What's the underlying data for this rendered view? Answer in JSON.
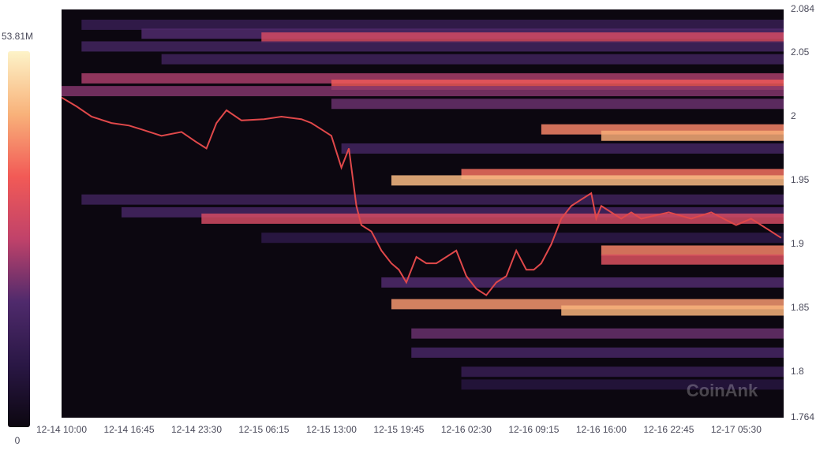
{
  "chart_data": {
    "type": "liquidation-heatmap",
    "watermark": "CoinAnk",
    "xlim": [
      "12-14 10:00",
      "12-17 10:15"
    ],
    "xticks": [
      "12-14 10:00",
      "12-14 16:45",
      "12-14 23:30",
      "12-15 06:15",
      "12-15 13:00",
      "12-15 19:45",
      "12-16 02:30",
      "12-16 09:15",
      "12-16 16:00",
      "12-16 22:45",
      "12-17 05:30"
    ],
    "ylim": [
      1.764,
      2.084
    ],
    "yticks": [
      1.764,
      1.8,
      1.85,
      1.9,
      1.95,
      2,
      2.05,
      2.084
    ],
    "colorbar": {
      "lim": [
        0,
        53810000
      ],
      "ticks": [
        {
          "value": 0,
          "label": "0"
        },
        {
          "value": 53810000,
          "label": "53.81M"
        }
      ]
    },
    "background": "#0c0710",
    "colormap": [
      "#0c0710",
      "#2a1745",
      "#4f2a6c",
      "#c0426a",
      "#f25a56",
      "#f8b27a",
      "#fdf3c8"
    ],
    "levels": {
      "price": [
        2.072,
        2.065,
        2.062,
        2.055,
        2.045,
        2.03,
        2.025,
        2.02,
        2.01,
        1.99,
        1.985,
        1.975,
        1.955,
        1.95,
        1.935,
        1.925,
        1.92,
        1.905,
        1.895,
        1.888,
        1.87,
        1.853,
        1.848,
        1.83,
        1.815,
        1.8,
        1.79
      ],
      "start": [
        "12-14 12:00",
        "12-14 18:00",
        "12-15 06:00",
        "12-14 12:00",
        "12-14 20:00",
        "12-14 12:00",
        "12-15 13:00",
        "12-14 10:00",
        "12-15 13:00",
        "12-16 10:00",
        "12-16 16:00",
        "12-15 14:00",
        "12-16 02:00",
        "12-15 19:00",
        "12-14 12:00",
        "12-14 16:00",
        "12-15 00:00",
        "12-15 06:00",
        "12-16 16:00",
        "12-16 16:00",
        "12-15 18:00",
        "12-15 19:00",
        "12-16 12:00",
        "12-15 21:00",
        "12-15 21:00",
        "12-16 02:00",
        "12-16 02:00"
      ],
      "values": [
        12000000,
        18000000,
        30000000,
        15000000,
        14000000,
        25000000,
        35000000,
        22000000,
        20000000,
        40000000,
        44000000,
        15000000,
        38000000,
        46000000,
        14000000,
        16000000,
        30000000,
        10000000,
        40000000,
        32000000,
        18000000,
        42000000,
        45000000,
        20000000,
        16000000,
        12000000,
        8000000
      ]
    },
    "price": {
      "color": "#e0484a",
      "x": [
        "12-14 10:00",
        "12-14 11:30",
        "12-14 13:00",
        "12-14 15:00",
        "12-14 16:45",
        "12-14 18:00",
        "12-14 20:00",
        "12-14 22:00",
        "12-14 23:30",
        "12-15 00:30",
        "12-15 01:30",
        "12-15 02:30",
        "12-15 04:00",
        "12-15 06:15",
        "12-15 08:00",
        "12-15 10:00",
        "12-15 11:00",
        "12-15 12:00",
        "12-15 13:00",
        "12-15 14:00",
        "12-15 14:45",
        "12-15 15:30",
        "12-15 16:00",
        "12-15 17:00",
        "12-15 18:00",
        "12-15 19:00",
        "12-15 19:45",
        "12-15 20:30",
        "12-15 21:30",
        "12-15 22:30",
        "12-15 23:30",
        "12-16 00:30",
        "12-16 01:30",
        "12-16 02:30",
        "12-16 03:30",
        "12-16 04:30",
        "12-16 05:30",
        "12-16 06:30",
        "12-16 07:30",
        "12-16 08:30",
        "12-16 09:15",
        "12-16 10:00",
        "12-16 11:00",
        "12-16 12:00",
        "12-16 13:00",
        "12-16 14:00",
        "12-16 15:00",
        "12-16 15:30",
        "12-16 16:00",
        "12-16 17:00",
        "12-16 18:00",
        "12-16 19:00",
        "12-16 20:00",
        "12-16 22:45",
        "12-17 01:00",
        "12-17 03:00",
        "12-17 05:30",
        "12-17 07:00",
        "12-17 09:00",
        "12-17 10:00"
      ],
      "values": [
        2.015,
        2.008,
        2.0,
        1.995,
        1.993,
        1.99,
        1.985,
        1.988,
        1.98,
        1.975,
        1.995,
        2.005,
        1.997,
        1.998,
        2.0,
        1.998,
        1.995,
        1.99,
        1.985,
        1.96,
        1.975,
        1.93,
        1.915,
        1.91,
        1.895,
        1.885,
        1.88,
        1.87,
        1.89,
        1.885,
        1.885,
        1.89,
        1.895,
        1.875,
        1.865,
        1.86,
        1.87,
        1.875,
        1.895,
        1.88,
        1.88,
        1.885,
        1.9,
        1.92,
        1.93,
        1.935,
        1.94,
        1.92,
        1.93,
        1.925,
        1.92,
        1.925,
        1.92,
        1.925,
        1.92,
        1.925,
        1.915,
        1.92,
        1.91,
        1.905
      ]
    }
  }
}
